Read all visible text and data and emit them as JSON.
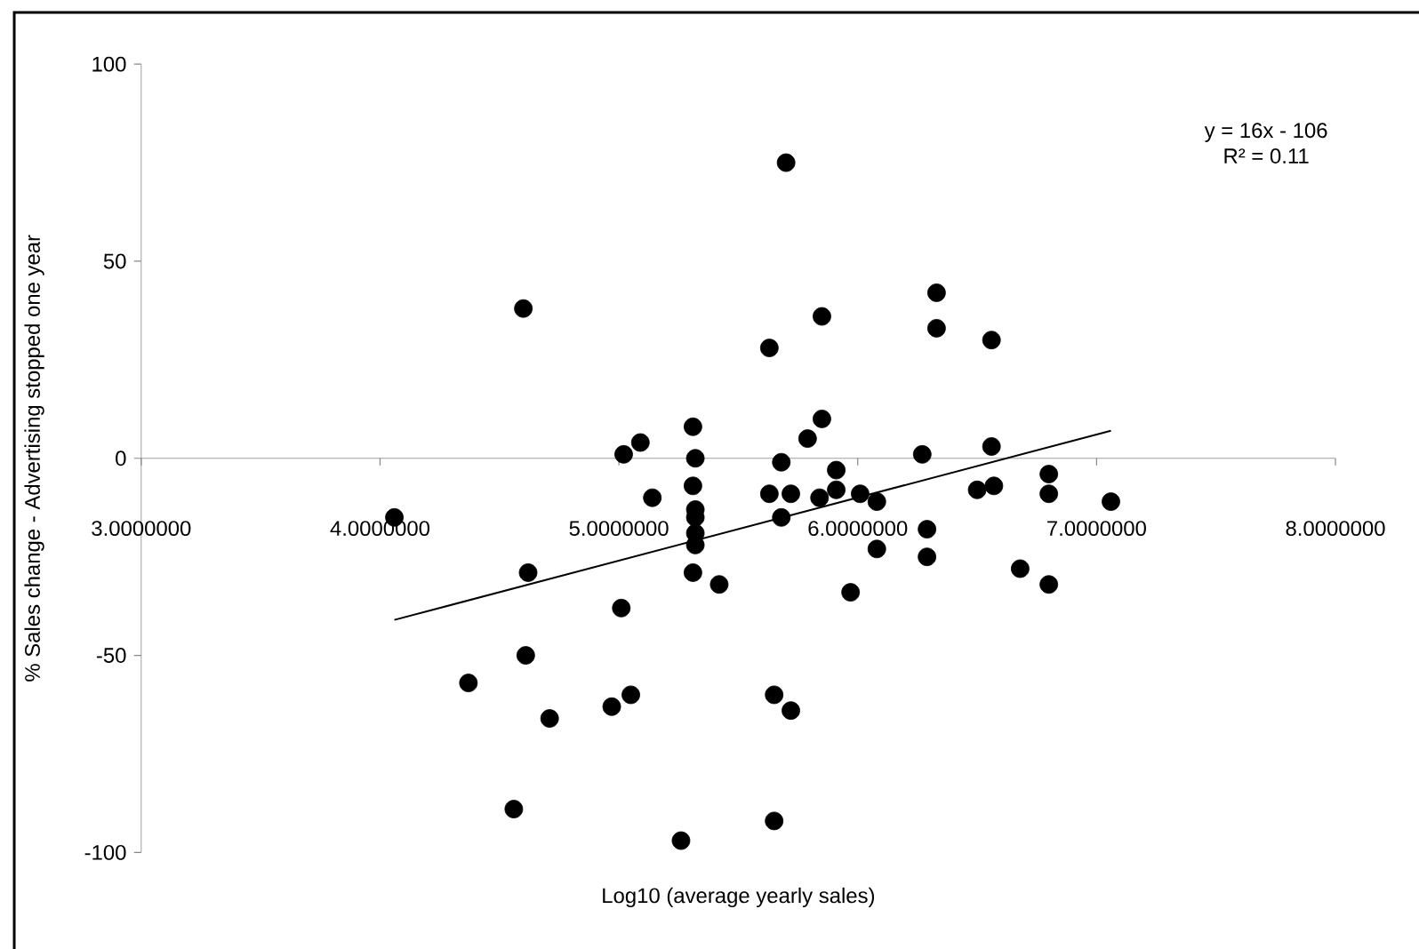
{
  "chart_data": {
    "type": "scatter",
    "xlabel": "Log10 (average yearly sales)",
    "ylabel": "% Sales change - Advertising stopped one year",
    "annotations": [
      "y = 16x - 106",
      "R² = 0.11"
    ],
    "xlim": [
      3,
      8
    ],
    "ylim": [
      -100,
      100
    ],
    "xticks": [
      {
        "value": 3,
        "label": "3.0000000"
      },
      {
        "value": 4,
        "label": "4.0000000"
      },
      {
        "value": 5,
        "label": "5.0000000"
      },
      {
        "value": 6,
        "label": "6.0000000"
      },
      {
        "value": 7,
        "label": "7.0000000"
      },
      {
        "value": 8,
        "label": "8.0000000"
      }
    ],
    "yticks": [
      -100,
      -50,
      0,
      50,
      100
    ],
    "series": [
      {
        "type": "scatter",
        "color": "#000000",
        "marker": "circle",
        "x": [
          4.6,
          4.06,
          5.02,
          5.09,
          5.31,
          5.32,
          5.31,
          5.14,
          5.32,
          5.32,
          5.32,
          5.32,
          5.31,
          4.62,
          5.01,
          4.61,
          4.37,
          4.71,
          4.97,
          5.05,
          4.56,
          5.26,
          5.7,
          5.63,
          5.85,
          6.33,
          6.33,
          6.56,
          5.85,
          5.79,
          5.68,
          6.27,
          6.56,
          5.91,
          5.63,
          5.72,
          5.84,
          5.91,
          6.01,
          6.08,
          6.5,
          6.57,
          6.8,
          6.8,
          7.06,
          5.68,
          6.29,
          6.08,
          6.29,
          6.68,
          6.8,
          5.42,
          5.97,
          5.65,
          5.72,
          5.65
        ],
        "values": [
          38,
          -15,
          1,
          4,
          8,
          0,
          -7,
          -10,
          -13,
          -15,
          -19,
          -22,
          -29,
          -29,
          -38,
          -50,
          -57,
          -66,
          -63,
          -60,
          -89,
          -97,
          75,
          28,
          36,
          42,
          33,
          30,
          10,
          5,
          -1,
          1,
          3,
          -3,
          -9,
          -9,
          -10,
          -8,
          -9,
          -11,
          -8,
          -7,
          -4,
          -9,
          -11,
          -15,
          -18,
          -23,
          -25,
          -28,
          -32,
          -32,
          -34,
          -60,
          -64,
          -92
        ]
      },
      {
        "type": "line",
        "color": "#000000",
        "marker": "none",
        "line_style": "solid",
        "x": [
          4.06,
          7.06
        ],
        "values": [
          -41,
          7
        ]
      }
    ]
  }
}
